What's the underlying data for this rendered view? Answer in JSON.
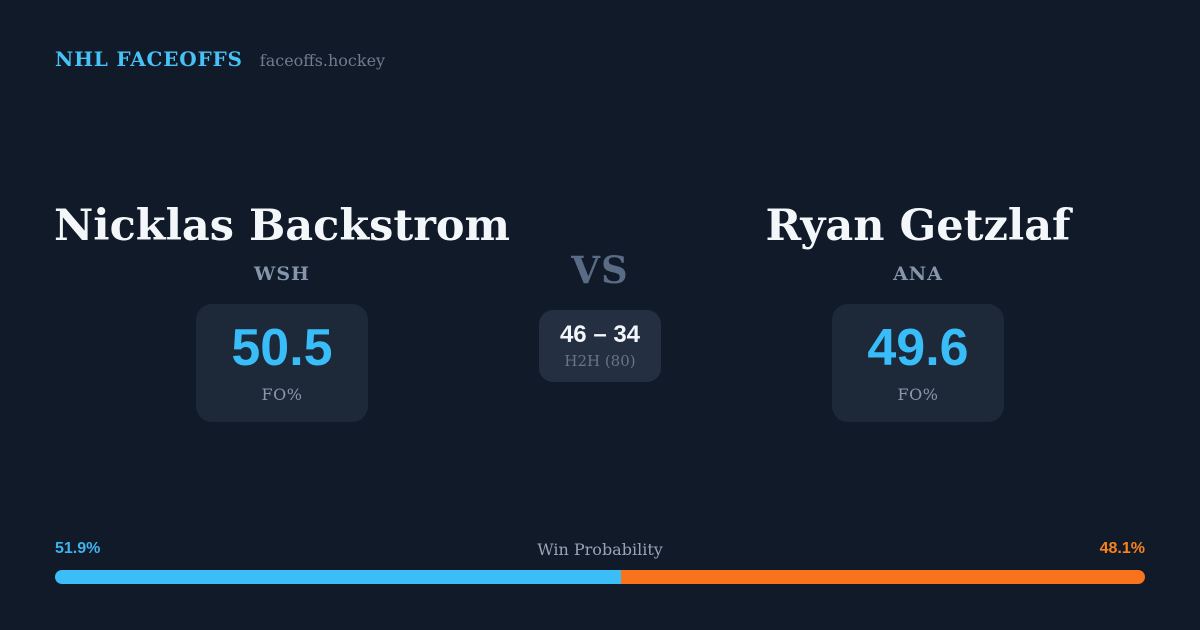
{
  "header": {
    "brand": "NHL FACEOFFS",
    "site": "faceoffs.hockey"
  },
  "players": {
    "left": {
      "name": "Nicklas Backstrom",
      "team": "WSH",
      "stat_value": "50.5",
      "stat_label": "FO%"
    },
    "right": {
      "name": "Ryan Getzlaf",
      "team": "ANA",
      "stat_value": "49.6",
      "stat_label": "FO%"
    }
  },
  "center": {
    "vs_label": "VS",
    "h2h_score": "46 – 34",
    "h2h_label": "H2H (80)"
  },
  "win_probability": {
    "title": "Win Probability",
    "left_label": "51.9%",
    "right_label": "48.1%",
    "left_value": 51.9,
    "right_value": 48.1,
    "left_color": "#3bbdf8",
    "right_color": "#f9731d"
  },
  "colors": {
    "background": "#111a29",
    "card": "#1d2839",
    "h2h_card": "#242f42",
    "accent_blue": "#38bdf8",
    "accent_orange": "#f97316",
    "brand_blue": "#47c1f6"
  }
}
